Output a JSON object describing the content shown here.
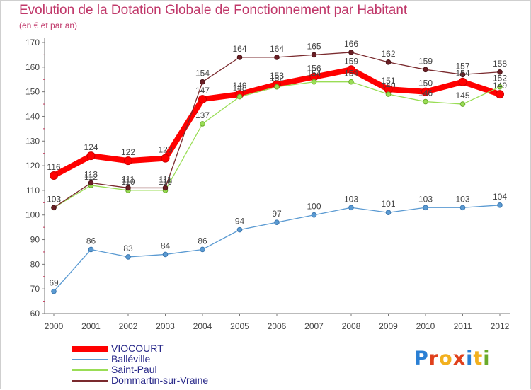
{
  "header": {
    "title": "Evolution de la Dotation Globale de Fonctionnement par Habitant",
    "subtitle": "(en € et par an)"
  },
  "logo": {
    "text": "Proxiti",
    "colors": [
      "#2a7fd4",
      "#e0401c",
      "#f2b01e",
      "#e0401c",
      "#2a7fd4",
      "#f2b01e",
      "#6aaa2a"
    ]
  },
  "chart_data": {
    "type": "line",
    "title": "Evolution de la Dotation Globale de Fonctionnement par Habitant",
    "ylabel": "(en € et par an)",
    "xlabel": "",
    "ylim": [
      60,
      170
    ],
    "yticks": [
      60,
      70,
      80,
      90,
      100,
      110,
      120,
      130,
      140,
      150,
      160,
      170
    ],
    "x": [
      "2000",
      "2001",
      "2002",
      "2003",
      "2004",
      "2005",
      "2006",
      "2007",
      "2008",
      "2009",
      "2010",
      "2011",
      "2012"
    ],
    "grid": false,
    "legend": "bottom-left",
    "series": [
      {
        "name": "VIOCOURT",
        "color": "#ff0000",
        "values": [
          116,
          124,
          122,
          123,
          147,
          149,
          153,
          156,
          159,
          151,
          150,
          154,
          149
        ]
      },
      {
        "name": "Balléville",
        "color": "#5a9ad2",
        "values": [
          69,
          86,
          83,
          84,
          86,
          94,
          97,
          100,
          103,
          101,
          103,
          103,
          104
        ]
      },
      {
        "name": "Saint-Paul",
        "color": "#99dd55",
        "values": [
          103,
          112,
          110,
          110,
          137,
          148,
          152,
          154,
          154,
          149,
          146,
          145,
          152
        ]
      },
      {
        "name": "Dommartin-sur-Vraine",
        "color": "#7a2a2e",
        "values": [
          103,
          113,
          111,
          111,
          154,
          164,
          164,
          165,
          166,
          162,
          159,
          157,
          158
        ]
      }
    ]
  }
}
